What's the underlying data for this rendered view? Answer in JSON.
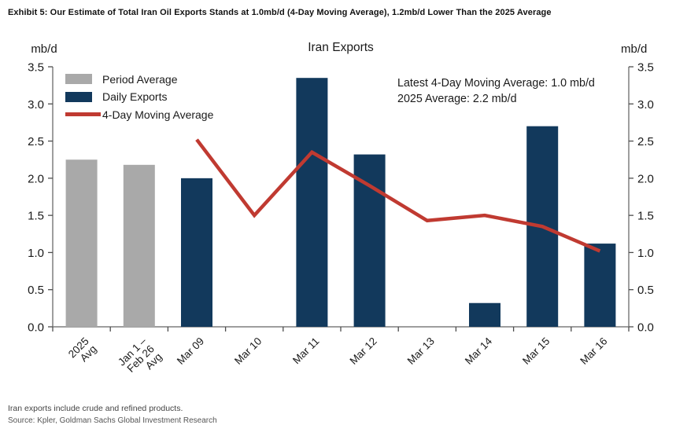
{
  "page": {
    "exhibit_title": "Exhibit 5: Our Estimate of Total Iran Oil Exports Stands at 1.0mb/d (4-Day Moving Average), 1.2mb/d Lower Than the 2025 Average",
    "footnote": "Iran exports include crude and refined products.",
    "source": "Source: Kpler, Goldman Sachs Global Investment Research"
  },
  "chart_data": {
    "type": "bar",
    "title": "Iran Exports",
    "unit_label_left": "mb/d",
    "unit_label_right": "mb/d",
    "ylim": [
      0.0,
      3.5
    ],
    "ytick_step": 0.5,
    "grid": false,
    "legend_position": "top-left",
    "categories": [
      "2025\nAvg",
      "Jan 1 –\nFeb 26\nAvg",
      "Mar 09",
      "Mar 10",
      "Mar 11",
      "Mar 12",
      "Mar 13",
      "Mar 14",
      "Mar 15",
      "Mar 16"
    ],
    "series": [
      {
        "name": "Period Average",
        "type": "bar",
        "color": "#a9a9a9",
        "values": [
          2.25,
          2.18,
          null,
          null,
          null,
          null,
          null,
          null,
          null,
          null
        ]
      },
      {
        "name": "Daily Exports",
        "type": "bar",
        "color": "#12395c",
        "values": [
          null,
          null,
          2.0,
          null,
          3.35,
          2.32,
          null,
          0.32,
          2.7,
          1.12
        ]
      },
      {
        "name": "4-Day Moving Average",
        "type": "line",
        "color": "#c03a31",
        "values": [
          null,
          null,
          2.52,
          1.5,
          2.35,
          1.9,
          1.43,
          1.5,
          1.35,
          1.02
        ]
      }
    ],
    "annotation_lines": [
      "Latest 4-Day Moving Average: 1.0 mb/d",
      "2025 Average: 2.2 mb/d"
    ],
    "axis_color": "#7f7f7f",
    "tick_color": "#4d4d4d",
    "text_color": "#1a1a1a"
  }
}
